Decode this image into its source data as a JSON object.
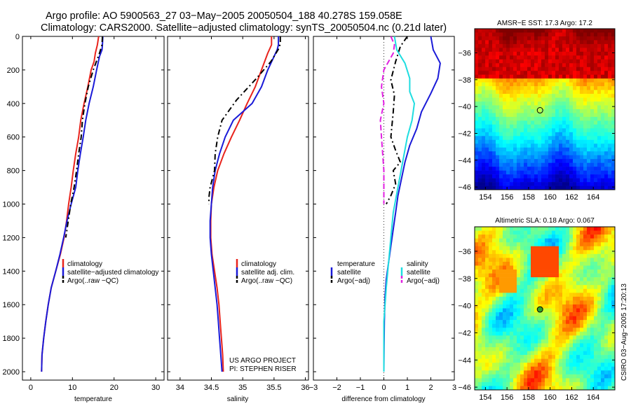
{
  "title": {
    "line1": "Argo profile: AO 5900563_27 03−May−2005 20050504_188 40.278S 159.058E",
    "line2": "Climatology: CARS2000. Satellite−adjusted climatology: synTS_20050504.nc (0.21d later)"
  },
  "credit": {
    "line1": "US ARGO PROJECT",
    "line2": "PI: STEPHEN RISER"
  },
  "side_note": "CSIRO 03−Aug−2005 17:20:13",
  "colors": {
    "climatology": "#e8231c",
    "satellite": "#1a1ad8",
    "argo": "#000000",
    "temp_sat_diff": "#1fdde0",
    "sal_argo_diff": "#e020e0"
  },
  "chart_data": [
    {
      "type": "line",
      "id": "temperature",
      "xlabel": "temperature",
      "ylabel": "",
      "xlim": [
        -2,
        32
      ],
      "ylim": [
        2050,
        0
      ],
      "xticks": [
        0,
        10,
        20,
        30
      ],
      "yticks": [
        0,
        200,
        400,
        600,
        800,
        1000,
        1200,
        1400,
        1600,
        1800,
        2000
      ],
      "legend": [
        "climatology",
        "satellite−adjusted climatology",
        "Argo(..raw −QC)"
      ],
      "series": [
        {
          "name": "climatology",
          "color": "#e8231c",
          "dash": "",
          "x": [
            16.3,
            16.0,
            15.5,
            15.2,
            14.5,
            13.7,
            12.8,
            12.0,
            11.5,
            10.8,
            10.2,
            9.7,
            9.1,
            8.6,
            8.0,
            7.1,
            6.0,
            4.9,
            4.2,
            3.6,
            3.1,
            2.7,
            2.6
          ],
          "y": [
            0,
            50,
            100,
            150,
            200,
            300,
            400,
            500,
            600,
            700,
            800,
            900,
            1000,
            1100,
            1200,
            1300,
            1400,
            1500,
            1600,
            1700,
            1800,
            1900,
            2000
          ]
        },
        {
          "name": "satellite−adjusted climatology",
          "color": "#1a1ad8",
          "dash": "",
          "x": [
            17.3,
            17.2,
            17.1,
            16.5,
            15.8,
            15.0,
            14.0,
            13.2,
            12.6,
            11.9,
            11.3,
            10.8,
            9.7,
            8.7,
            7.9,
            7.0,
            6.0,
            4.9,
            4.2,
            3.6,
            3.1,
            2.7,
            2.6
          ],
          "y": [
            0,
            50,
            80,
            120,
            200,
            300,
            400,
            500,
            600,
            700,
            800,
            900,
            1000,
            1100,
            1200,
            1300,
            1400,
            1500,
            1600,
            1700,
            1800,
            1900,
            2000
          ]
        },
        {
          "name": "Argo(..raw −QC)",
          "color": "#000000",
          "dash": "8,4,2,4",
          "x": [
            17.2,
            17.1,
            16.5,
            15.0,
            13.8,
            13.0,
            12.4,
            12.1,
            11.5,
            11.0,
            10.4,
            9.6,
            9.0,
            8.4
          ],
          "y": [
            0,
            50,
            100,
            200,
            300,
            400,
            500,
            600,
            700,
            800,
            900,
            1000,
            1100,
            1200
          ]
        }
      ]
    },
    {
      "type": "line",
      "id": "salinity",
      "xlabel": "salinity",
      "ylabel": "",
      "xlim": [
        33.8,
        36.05
      ],
      "ylim": [
        2050,
        0
      ],
      "xticks": [
        34,
        34.5,
        35,
        35.5,
        36
      ],
      "yticks": [
        0,
        200,
        400,
        600,
        800,
        1000,
        1200,
        1400,
        1600,
        1800,
        2000
      ],
      "legend": [
        "climatology",
        "satellite adj. clim.",
        "Argo(..raw −QC)"
      ],
      "series": [
        {
          "name": "climatology",
          "color": "#e8231c",
          "dash": "",
          "x": [
            35.46,
            35.46,
            35.4,
            35.3,
            35.2,
            35.07,
            34.95,
            34.82,
            34.7,
            34.6,
            34.54,
            34.5,
            34.49,
            34.49,
            34.51,
            34.55,
            34.59,
            34.62,
            34.64,
            34.66,
            34.68,
            34.69
          ],
          "y": [
            0,
            50,
            100,
            200,
            300,
            400,
            500,
            600,
            700,
            800,
            900,
            1000,
            1100,
            1200,
            1300,
            1400,
            1500,
            1600,
            1700,
            1800,
            1900,
            2000
          ]
        },
        {
          "name": "satellite adj. clim.",
          "color": "#1a1ad8",
          "dash": "",
          "x": [
            35.57,
            35.57,
            35.55,
            35.4,
            35.3,
            35.15,
            34.85,
            34.72,
            34.63,
            34.56,
            34.52,
            34.5,
            34.48,
            34.48,
            34.5,
            34.53,
            34.56,
            34.59,
            34.61,
            34.63,
            34.65,
            34.67
          ],
          "y": [
            0,
            50,
            80,
            200,
            300,
            400,
            500,
            600,
            700,
            800,
            900,
            1000,
            1100,
            1200,
            1300,
            1400,
            1500,
            1600,
            1700,
            1800,
            1900,
            2000
          ]
        },
        {
          "name": "Argo(..raw −QC)",
          "color": "#000000",
          "dash": "8,4,2,4",
          "x": [
            35.6,
            35.6,
            35.58,
            35.45,
            35.22,
            34.9,
            34.67,
            34.6,
            34.56,
            34.55,
            34.48,
            34.46,
            34.46
          ],
          "y": [
            0,
            40,
            70,
            150,
            250,
            380,
            500,
            600,
            700,
            800,
            900,
            960,
            1000
          ]
        }
      ]
    },
    {
      "type": "line",
      "id": "difference",
      "xlabel": "difference from climatology",
      "ylabel": "",
      "xlim": [
        -3,
        3
      ],
      "ylim": [
        2050,
        0
      ],
      "xticks": [
        -3,
        -2,
        -1,
        0,
        1,
        2,
        3
      ],
      "yticks": [
        0,
        200,
        400,
        600,
        800,
        1000,
        1200,
        1400,
        1600,
        1800,
        2000
      ],
      "legend_left_title": "temperature",
      "legend_left": [
        "satellite",
        "Argo(−adj)"
      ],
      "legend_right_title": "salinity",
      "legend_right": [
        "satellite",
        "Argo(−adj)"
      ],
      "series": [
        {
          "name": "temperature satellite",
          "color": "#1a1ad8",
          "dash": "",
          "x": [
            2.0,
            2.1,
            2.4,
            2.3,
            2.0,
            1.6,
            1.4,
            1.1,
            0.9,
            0.75,
            0.6,
            0.5,
            0.4,
            0.3,
            0.2,
            0.1,
            0.05,
            0.02,
            0.01,
            0.0
          ],
          "y": [
            0,
            80,
            160,
            250,
            340,
            450,
            550,
            650,
            750,
            850,
            950,
            1050,
            1150,
            1250,
            1350,
            1450,
            1550,
            1700,
            1850,
            2000
          ]
        },
        {
          "name": "temperature Argo(−adj)",
          "color": "#000000",
          "dash": "8,4,2,4",
          "x": [
            1.0,
            0.7,
            0.5,
            0.3,
            0.45,
            0.4,
            0.3,
            0.5,
            0.7,
            0.4,
            0.5,
            0.3,
            0.1
          ],
          "y": [
            0,
            60,
            150,
            260,
            350,
            450,
            600,
            680,
            750,
            800,
            880,
            950,
            1000
          ]
        },
        {
          "name": "salinity satellite",
          "color": "#1fdde0",
          "dash": "",
          "x": [
            0.45,
            0.55,
            0.9,
            1.1,
            1.1,
            1.3,
            1.2,
            1.0,
            0.8,
            0.6,
            0.4,
            0.3,
            0.2,
            0.1,
            0.0,
            0.0
          ],
          "y": [
            0,
            80,
            160,
            250,
            330,
            400,
            500,
            600,
            750,
            900,
            1050,
            1200,
            1350,
            1500,
            1700,
            2000
          ]
        },
        {
          "name": "salinity Argo(−adj)",
          "color": "#e020e0",
          "dash": "8,4",
          "x": [
            0.3,
            0.45,
            0.4,
            0.0,
            -0.1,
            0.0,
            -0.15,
            -0.1,
            -0.05,
            0.0,
            0.0,
            0.0
          ],
          "y": [
            0,
            50,
            100,
            200,
            300,
            400,
            500,
            600,
            700,
            800,
            900,
            1000
          ]
        }
      ]
    },
    {
      "type": "heatmap",
      "id": "sst-map",
      "title": "AMSR−E SST: 17.3 Argo: 17.2",
      "xlim": [
        153,
        166
      ],
      "ylim": [
        -46.2,
        -34.2
      ],
      "xticks": [
        154,
        156,
        158,
        160,
        162,
        164
      ],
      "yticks": [
        -36,
        -38,
        -40,
        -42,
        -44,
        -46
      ],
      "marker": {
        "lon": 159.06,
        "lat": -40.28
      }
    },
    {
      "type": "heatmap",
      "id": "sla-map",
      "title": "Altimetric SLA: 0.18 Argo: 0.067",
      "xlim": [
        153,
        166
      ],
      "ylim": [
        -46.2,
        -34.2
      ],
      "xticks": [
        154,
        156,
        158,
        160,
        162,
        164
      ],
      "yticks": [
        -36,
        -38,
        -40,
        -42,
        -44,
        -46
      ],
      "marker": {
        "lon": 159.06,
        "lat": -40.28
      }
    }
  ]
}
